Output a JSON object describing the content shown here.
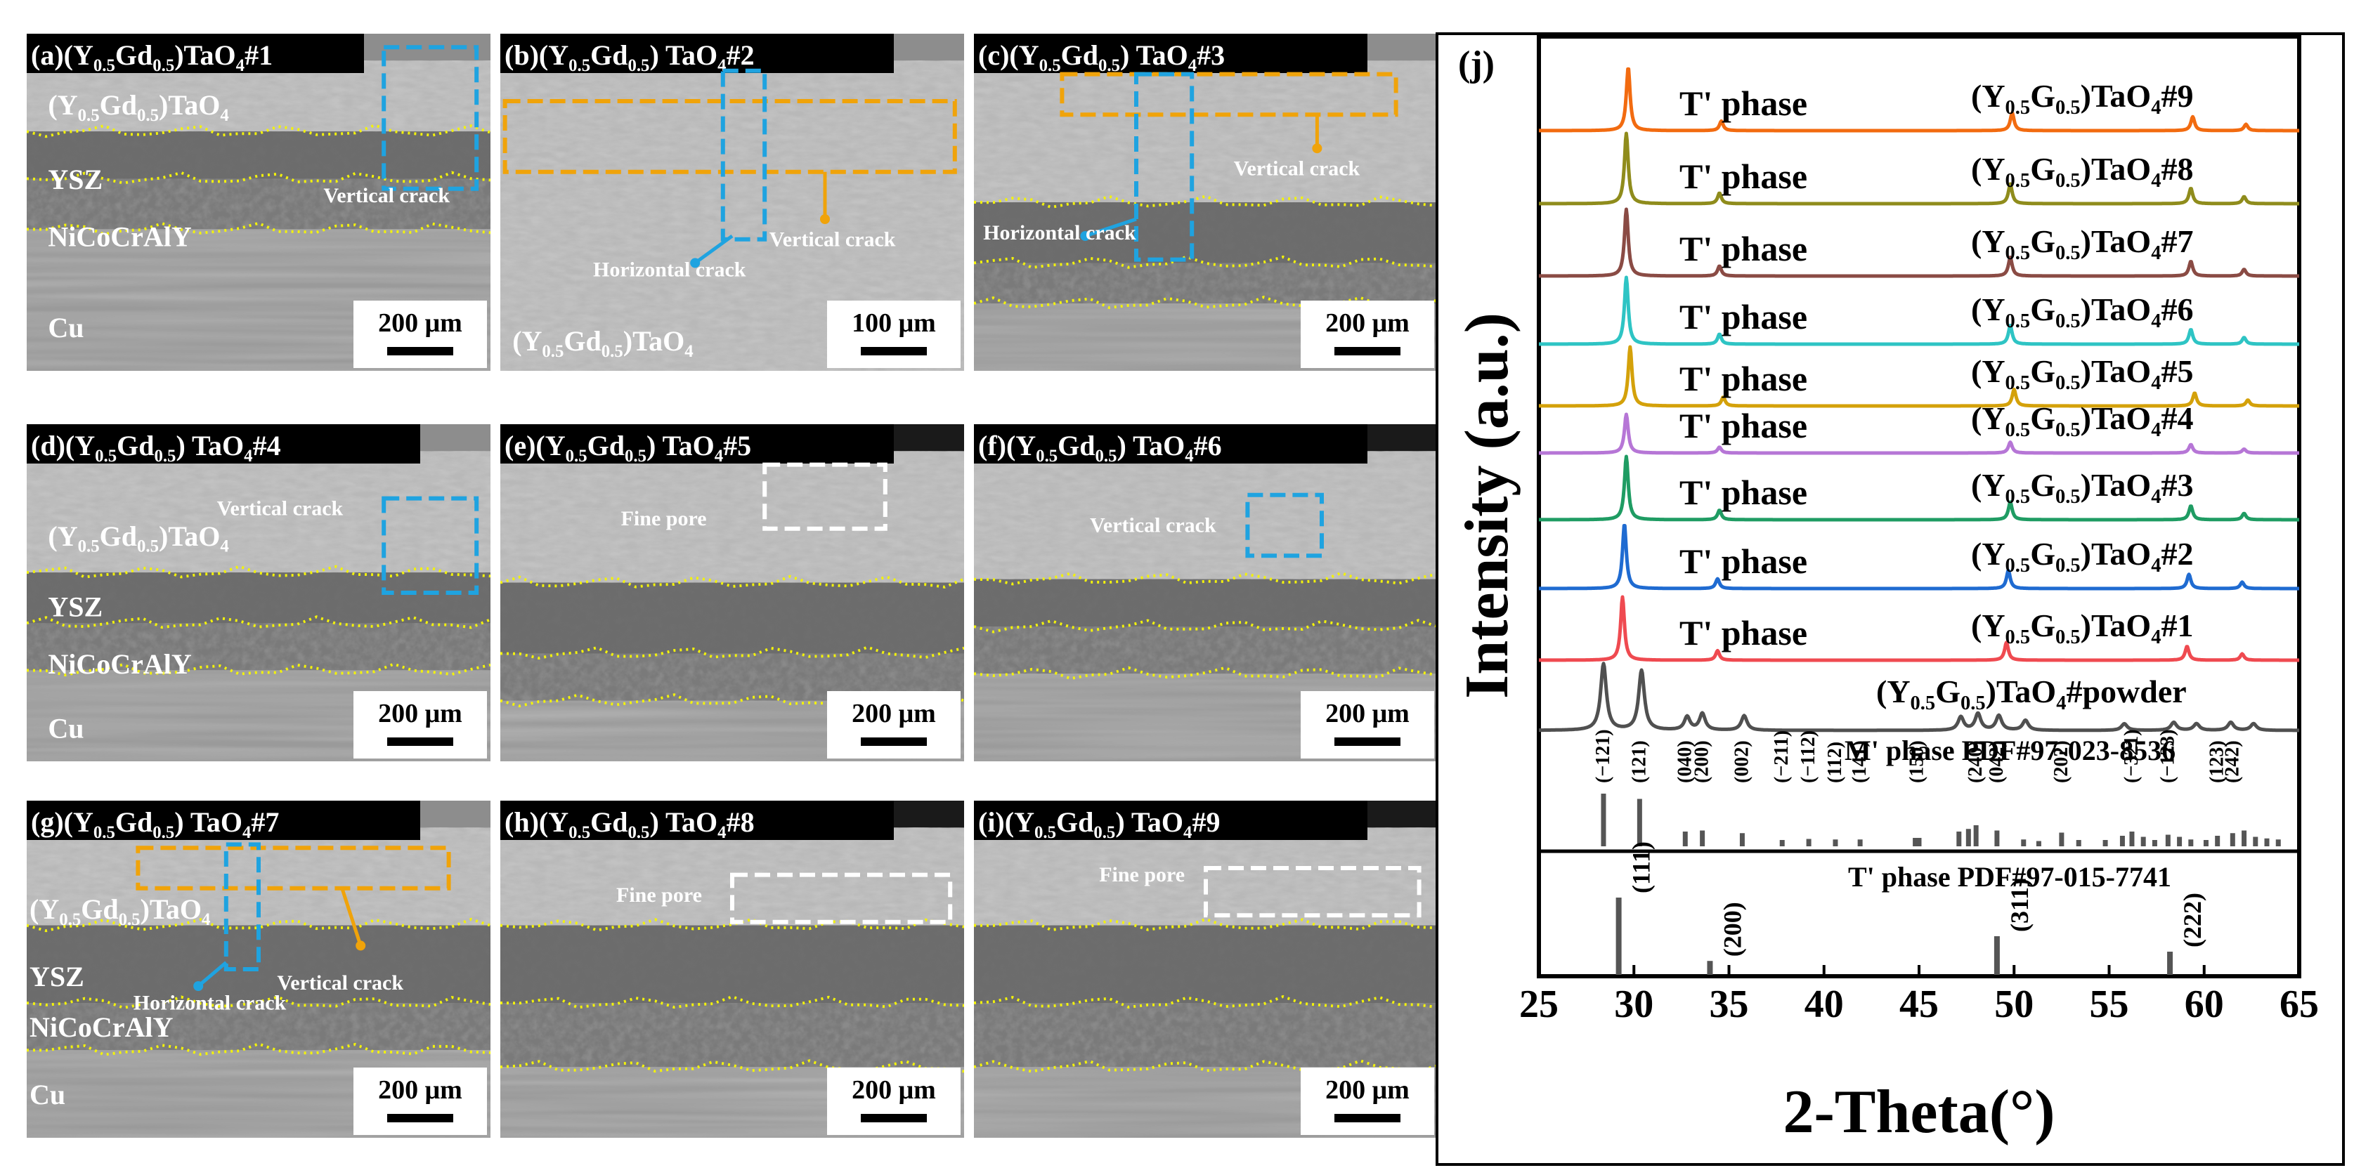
{
  "panels": [
    {
      "id": "a",
      "title": [
        "(a)(Y",
        "0.5",
        "Gd",
        "0.5",
        ")TaO",
        "4",
        "#1"
      ],
      "layers": [
        {
          "text": [
            "(Y",
            "0.5",
            "Gd",
            "0.5",
            ")TaO",
            "4"
          ]
        },
        {
          "text": [
            "YSZ"
          ]
        },
        {
          "text": [
            "NiCoCrAlY"
          ]
        },
        {
          "text": [
            "Cu"
          ]
        }
      ],
      "annotations": [
        {
          "type": "vertical",
          "text": "Vertical crack"
        }
      ],
      "scale": "200 μm"
    },
    {
      "id": "b",
      "title": [
        "(b)(Y",
        "0.5",
        "Gd",
        "0.5",
        ") TaO",
        "4",
        "#2"
      ],
      "layers": [
        {
          "text": [
            "(Y",
            "0.5",
            "Gd",
            "0.5",
            ")TaO",
            "4"
          ]
        }
      ],
      "annotations": [
        {
          "type": "vertical",
          "text": "Vertical crack"
        },
        {
          "type": "horizontal",
          "text": "Horizontal crack"
        }
      ],
      "scale": "100 μm"
    },
    {
      "id": "c",
      "title": [
        "(c)(Y",
        "0.5",
        "Gd",
        "0.5",
        ") TaO",
        "4",
        "#3"
      ],
      "layers": [],
      "annotations": [
        {
          "type": "vertical",
          "text": "Vertical crack"
        },
        {
          "type": "horizontal",
          "text": "Horizontal crack"
        }
      ],
      "scale": "200 μm"
    },
    {
      "id": "d",
      "title": [
        "(d)(Y",
        "0.5",
        "Gd",
        "0.5",
        ") TaO",
        "4",
        "#4"
      ],
      "layers": [
        {
          "text": [
            "(Y",
            "0.5",
            "Gd",
            "0.5",
            ")TaO",
            "4"
          ]
        },
        {
          "text": [
            "YSZ"
          ]
        },
        {
          "text": [
            "NiCoCrAlY"
          ]
        },
        {
          "text": [
            "Cu"
          ]
        }
      ],
      "annotations": [
        {
          "type": "vertical",
          "text": "Vertical crack"
        }
      ],
      "scale": "200 μm"
    },
    {
      "id": "e",
      "title": [
        "(e)(Y",
        "0.5",
        "Gd",
        "0.5",
        ") TaO",
        "4",
        "#5"
      ],
      "layers": [],
      "annotations": [
        {
          "type": "pore",
          "text": "Fine pore"
        }
      ],
      "scale": "200 μm"
    },
    {
      "id": "f",
      "title": [
        "(f)(Y",
        "0.5",
        "Gd",
        "0.5",
        ") TaO",
        "4",
        "#6"
      ],
      "layers": [],
      "annotations": [
        {
          "type": "vertical",
          "text": "Vertical crack"
        }
      ],
      "scale": "200 μm"
    },
    {
      "id": "g",
      "title": [
        "(g)(Y",
        "0.5",
        "Gd",
        "0.5",
        ") TaO",
        "4",
        "#7"
      ],
      "layers": [
        {
          "text": [
            "(Y",
            "0.5",
            "Gd",
            "0.5",
            ")TaO",
            "4"
          ]
        },
        {
          "text": [
            "YSZ"
          ]
        },
        {
          "text": [
            "NiCoCrAlY"
          ]
        },
        {
          "text": [
            "Cu"
          ]
        }
      ],
      "annotations": [
        {
          "type": "vertical",
          "text": "Vertical crack"
        },
        {
          "type": "horizontal",
          "text": "Horizontal crack"
        }
      ],
      "scale": "200 μm"
    },
    {
      "id": "h",
      "title": [
        "(h)(Y",
        "0.5",
        "Gd",
        "0.5",
        ") TaO",
        "4",
        "#8"
      ],
      "layers": [],
      "annotations": [
        {
          "type": "pore",
          "text": "Fine pore"
        }
      ],
      "scale": "200 μm"
    },
    {
      "id": "i",
      "title": [
        "(i)(Y",
        "0.5",
        "Gd",
        "0.5",
        ") TaO",
        "4",
        "#9"
      ],
      "layers": [],
      "annotations": [
        {
          "type": "pore",
          "text": "Fine pore"
        }
      ],
      "scale": "200 μm"
    }
  ],
  "colors": {
    "vertical_crack": "#1fa3e0",
    "horizontal_crack": "#f0a30a",
    "fine_pore": "#ffffff",
    "interface": "#f2f20c"
  },
  "chart_data": {
    "type": "line",
    "panel_label": "(j)",
    "xlabel": "2-Theta(°)",
    "ylabel": "Intensity (a.u.)",
    "xlim": [
      25,
      65
    ],
    "xticks": [
      25,
      30,
      35,
      40,
      45,
      50,
      55,
      60,
      65
    ],
    "series": [
      {
        "name": [
          "(Y",
          "0.5",
          "G",
          "0.5",
          ")TaO",
          "4",
          "#9"
        ],
        "phase": "T' phase",
        "color": "#f26b10",
        "peaks": [
          [
            29.7,
            1.0
          ],
          [
            34.6,
            0.15
          ],
          [
            49.9,
            0.28
          ],
          [
            59.4,
            0.22
          ],
          [
            62.2,
            0.1
          ]
        ]
      },
      {
        "name": [
          "(Y",
          "0.5",
          "G",
          "0.5",
          ")TaO",
          "4",
          "#8"
        ],
        "phase": "T' phase",
        "color": "#8f8c1c",
        "peaks": [
          [
            29.6,
            1.0
          ],
          [
            34.5,
            0.15
          ],
          [
            49.8,
            0.28
          ],
          [
            59.3,
            0.22
          ],
          [
            62.1,
            0.1
          ]
        ]
      },
      {
        "name": [
          "(Y",
          "0.5",
          "G",
          "0.5",
          ")TaO",
          "4",
          "#7"
        ],
        "phase": "T' phase",
        "color": "#8a4b44",
        "peaks": [
          [
            29.6,
            1.0
          ],
          [
            34.5,
            0.15
          ],
          [
            49.8,
            0.28
          ],
          [
            59.3,
            0.22
          ],
          [
            62.1,
            0.1
          ]
        ]
      },
      {
        "name": [
          "(Y",
          "0.5",
          "G",
          "0.5",
          ")TaO",
          "4",
          "#6"
        ],
        "phase": "T' phase",
        "color": "#2ec4c4",
        "peaks": [
          [
            29.6,
            1.0
          ],
          [
            34.5,
            0.15
          ],
          [
            49.8,
            0.28
          ],
          [
            59.3,
            0.22
          ],
          [
            62.1,
            0.1
          ]
        ]
      },
      {
        "name": [
          "(Y",
          "0.5",
          "G",
          "0.5",
          ")TaO",
          "4",
          "#5"
        ],
        "phase": "T' phase",
        "color": "#d4a10a",
        "peaks": [
          [
            29.8,
            1.0
          ],
          [
            34.7,
            0.15
          ],
          [
            50.0,
            0.28
          ],
          [
            59.5,
            0.22
          ],
          [
            62.3,
            0.1
          ]
        ]
      },
      {
        "name": [
          "(Y",
          "0.5",
          "G",
          "0.5",
          ")TaO",
          "4",
          "#4"
        ],
        "phase": "T' phase",
        "color": "#b676d6",
        "peaks": [
          [
            29.6,
            1.0
          ],
          [
            34.5,
            0.15
          ],
          [
            49.8,
            0.28
          ],
          [
            59.3,
            0.22
          ],
          [
            62.1,
            0.1
          ]
        ]
      },
      {
        "name": [
          "(Y",
          "0.5",
          "G",
          "0.5",
          ")TaO",
          "4",
          "#3"
        ],
        "phase": "T' phase",
        "color": "#1f9c63",
        "peaks": [
          [
            29.6,
            1.0
          ],
          [
            34.5,
            0.15
          ],
          [
            49.8,
            0.28
          ],
          [
            59.3,
            0.22
          ],
          [
            62.1,
            0.1
          ]
        ]
      },
      {
        "name": [
          "(Y",
          "0.5",
          "G",
          "0.5",
          ")TaO",
          "4",
          "#2"
        ],
        "phase": "T' phase",
        "color": "#1f6bd1",
        "peaks": [
          [
            29.5,
            1.0
          ],
          [
            34.4,
            0.15
          ],
          [
            49.7,
            0.28
          ],
          [
            59.2,
            0.22
          ],
          [
            62.0,
            0.1
          ]
        ]
      },
      {
        "name": [
          "(Y",
          "0.5",
          "G",
          "0.5",
          ")TaO",
          "4",
          "#1"
        ],
        "phase": "T' phase",
        "color": "#ef4a50",
        "peaks": [
          [
            29.4,
            1.0
          ],
          [
            34.4,
            0.15
          ],
          [
            49.6,
            0.28
          ],
          [
            59.1,
            0.22
          ],
          [
            62.0,
            0.1
          ]
        ]
      },
      {
        "name": [
          "(Y",
          "0.5",
          "G",
          "0.5",
          ")TaO",
          "4",
          "#powder"
        ],
        "phase": "",
        "color": "#505050",
        "peaks": [
          [
            28.4,
            1.0
          ],
          [
            30.4,
            0.9
          ],
          [
            32.8,
            0.2
          ],
          [
            33.6,
            0.25
          ],
          [
            35.8,
            0.22
          ],
          [
            47.2,
            0.2
          ],
          [
            48.1,
            0.25
          ],
          [
            49.2,
            0.22
          ],
          [
            50.6,
            0.15
          ],
          [
            55.8,
            0.1
          ],
          [
            58.4,
            0.12
          ],
          [
            59.6,
            0.1
          ],
          [
            61.4,
            0.12
          ],
          [
            62.6,
            0.1
          ]
        ]
      }
    ],
    "reference_m": {
      "label": "M' phase PDF#97-023-8536",
      "sticks": [
        [
          28.4,
          1.0
        ],
        [
          30.3,
          0.9
        ],
        [
          32.7,
          0.28
        ],
        [
          33.6,
          0.3
        ],
        [
          35.7,
          0.25
        ],
        [
          37.8,
          0.12
        ],
        [
          39.2,
          0.14
        ],
        [
          40.6,
          0.13
        ],
        [
          41.9,
          0.13
        ],
        [
          44.8,
          0.16
        ],
        [
          45.0,
          0.16
        ],
        [
          47.1,
          0.28
        ],
        [
          47.6,
          0.33
        ],
        [
          48.0,
          0.4
        ],
        [
          49.1,
          0.3
        ],
        [
          50.5,
          0.13
        ],
        [
          51.3,
          0.1
        ],
        [
          52.5,
          0.26
        ],
        [
          53.4,
          0.12
        ],
        [
          54.8,
          0.12
        ],
        [
          55.7,
          0.2
        ],
        [
          56.2,
          0.28
        ],
        [
          56.8,
          0.18
        ],
        [
          57.4,
          0.12
        ],
        [
          58.1,
          0.22
        ],
        [
          58.7,
          0.18
        ],
        [
          59.3,
          0.13
        ],
        [
          60.1,
          0.12
        ],
        [
          60.7,
          0.2
        ],
        [
          61.5,
          0.25
        ],
        [
          62.1,
          0.3
        ],
        [
          62.7,
          0.18
        ],
        [
          63.3,
          0.15
        ],
        [
          63.9,
          0.13
        ]
      ],
      "labels": [
        [
          28.4,
          "(−121)"
        ],
        [
          30.3,
          "(121)"
        ],
        [
          32.7,
          "(040)"
        ],
        [
          33.6,
          "(200)"
        ],
        [
          35.7,
          "(002)"
        ],
        [
          37.8,
          "(−211)"
        ],
        [
          39.2,
          "(−112)"
        ],
        [
          40.6,
          "(112)"
        ],
        [
          41.9,
          "(141)"
        ],
        [
          44.9,
          "(150)"
        ],
        [
          48.0,
          "(240)"
        ],
        [
          49.1,
          "(042)"
        ],
        [
          52.5,
          "(202)"
        ],
        [
          56.2,
          "(−321)"
        ],
        [
          58.1,
          "(−123)"
        ],
        [
          60.7,
          "(123)"
        ],
        [
          61.5,
          "(242)"
        ]
      ]
    },
    "reference_t": {
      "label": "T'  phase PDF#97-015-7741",
      "sticks": [
        [
          29.2,
          1.0
        ],
        [
          34.0,
          0.18
        ],
        [
          49.1,
          0.5
        ],
        [
          58.2,
          0.3
        ]
      ],
      "labels": [
        [
          29.2,
          "(111)"
        ],
        [
          34.0,
          "(200)"
        ],
        [
          49.1,
          "(311)"
        ],
        [
          58.2,
          "(222)"
        ]
      ]
    }
  }
}
